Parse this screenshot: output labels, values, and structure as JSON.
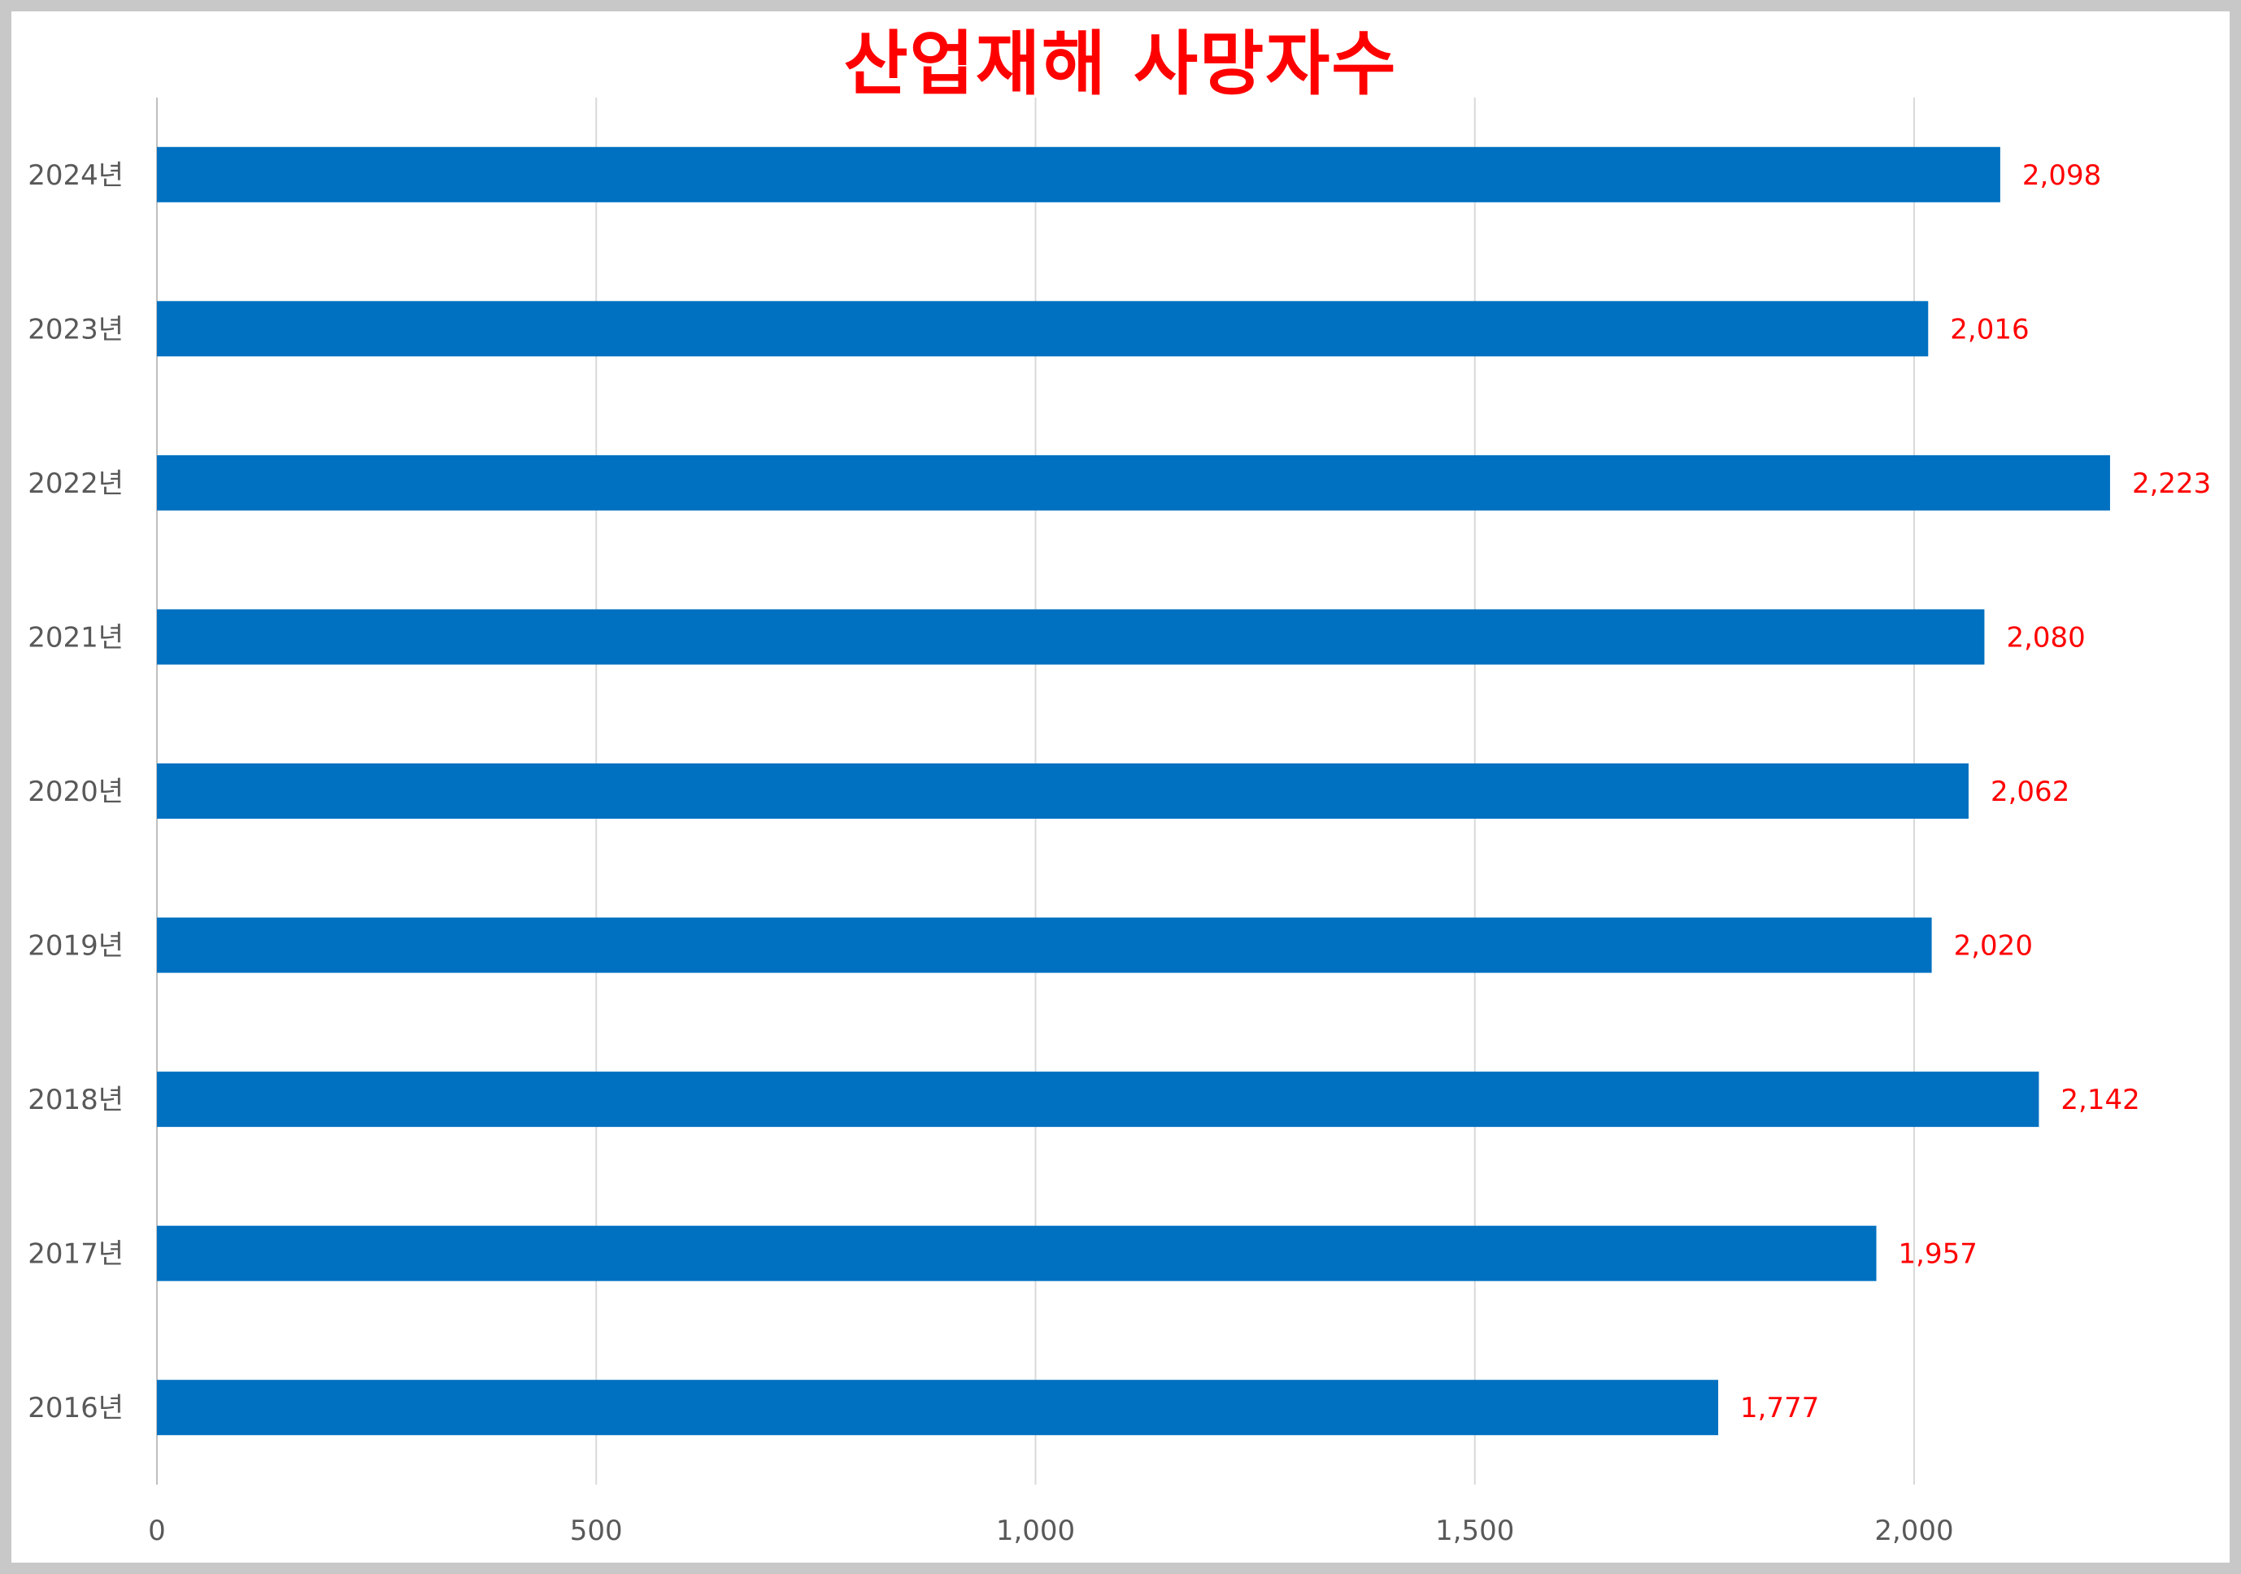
{
  "chart_data": {
    "type": "bar",
    "orientation": "horizontal",
    "title": "산업재해 사망자수",
    "categories": [
      "2024년",
      "2023년",
      "2022년",
      "2021년",
      "2020년",
      "2019년",
      "2018년",
      "2017년",
      "2016년"
    ],
    "values": [
      2098,
      2016,
      2223,
      2080,
      2062,
      2020,
      2142,
      1957,
      1777
    ],
    "value_labels": [
      "2,098",
      "2,016",
      "2,223",
      "2,080",
      "2,062",
      "2,020",
      "2,142",
      "1,957",
      "1,777"
    ],
    "xlabel": "",
    "ylabel": "",
    "xlim": [
      0,
      2300
    ],
    "x_ticks": [
      0,
      500,
      1000,
      1500,
      2000
    ],
    "x_tick_labels": [
      "0",
      "500",
      "1,000",
      "1,500",
      "2,000"
    ],
    "grid": "vertical",
    "legend": "none",
    "bar_color": "#0070C0",
    "label_color": "#FF0000",
    "title_color": "#FF0000"
  }
}
